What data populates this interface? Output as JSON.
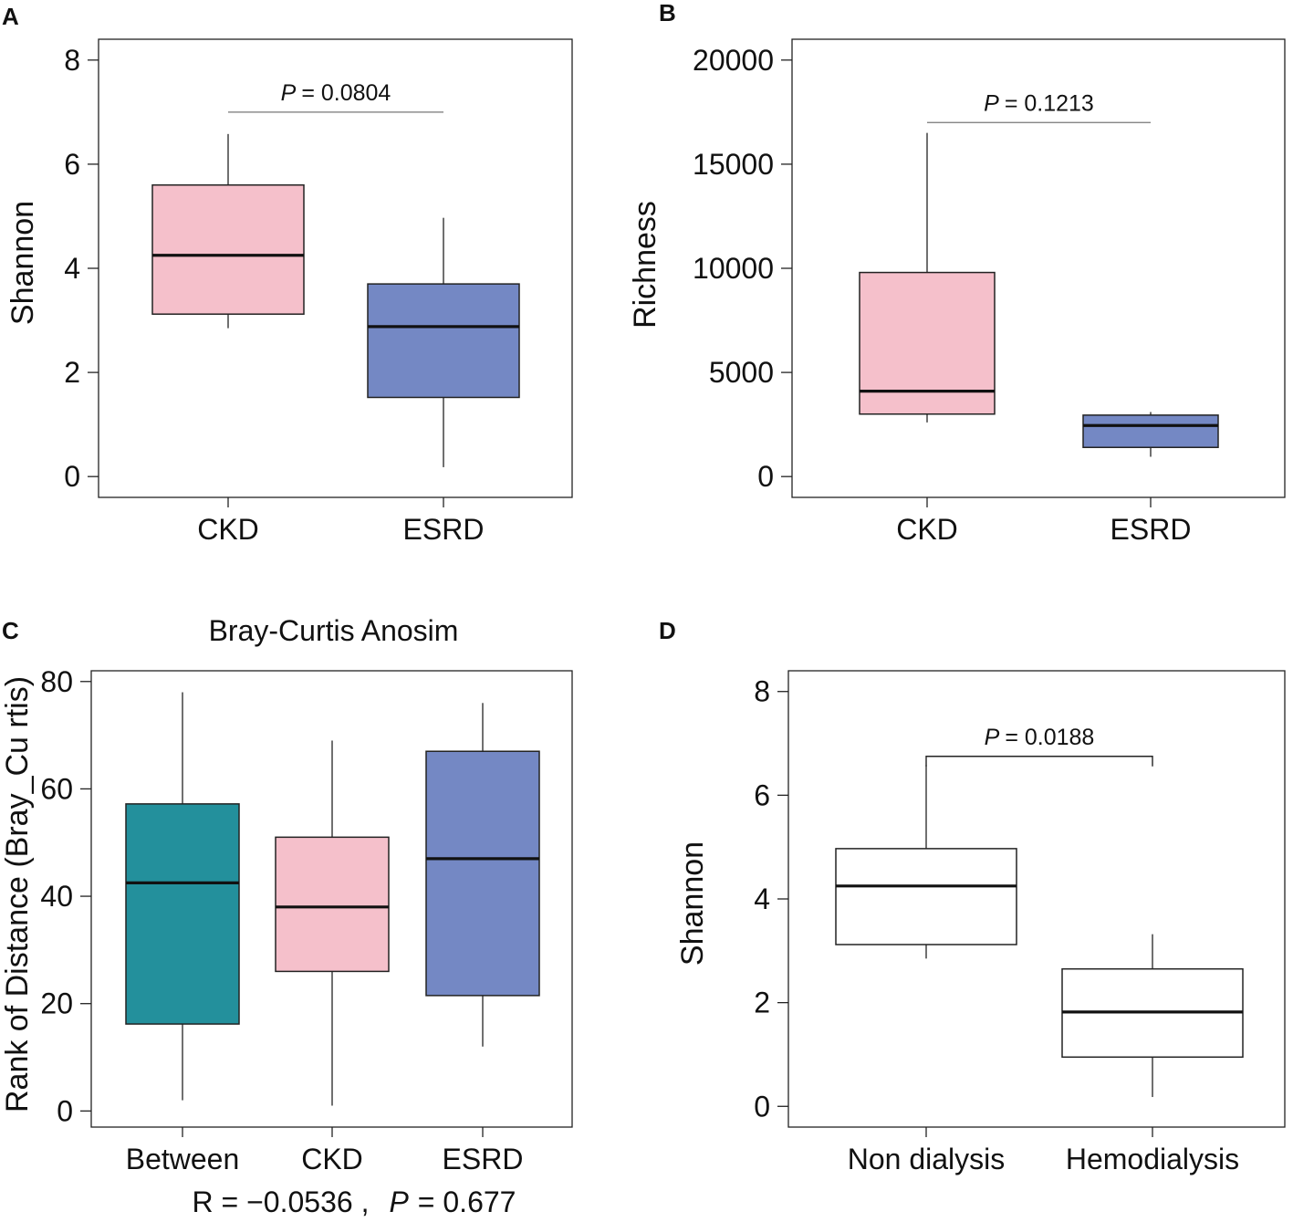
{
  "chart_data": [
    {
      "type": "box",
      "panel": "A",
      "xlabel": "",
      "ylabel": "Shannon",
      "ylim": [
        -0.4,
        8.4
      ],
      "yticks": [
        0,
        2,
        4,
        6,
        8
      ],
      "categories": [
        "CKD",
        "ESRD"
      ],
      "boxes": [
        {
          "name": "CKD",
          "min": 2.85,
          "q1": 3.12,
          "median": 4.25,
          "q3": 5.6,
          "max": 6.58,
          "color": "#f5c0cb"
        },
        {
          "name": "ESRD",
          "min": 0.18,
          "q1": 1.52,
          "median": 2.88,
          "q3": 3.7,
          "max": 4.97,
          "color": "#7488c4"
        }
      ],
      "annotation": {
        "p_label": "P",
        "p_value": "= 0.0804",
        "y": 7.0,
        "style": "line"
      }
    },
    {
      "type": "box",
      "panel": "B",
      "xlabel": "",
      "ylabel": "Richness",
      "ylim": [
        -1000,
        21000
      ],
      "yticks": [
        0,
        5000,
        10000,
        15000,
        20000
      ],
      "categories": [
        "CKD",
        "ESRD"
      ],
      "boxes": [
        {
          "name": "CKD",
          "min": 2600,
          "q1": 3000,
          "median": 4100,
          "q3": 9800,
          "max": 16500,
          "color": "#f5c0cb"
        },
        {
          "name": "ESRD",
          "min": 950,
          "q1": 1400,
          "median": 2450,
          "q3": 2950,
          "max": 3100,
          "color": "#7488c4"
        }
      ],
      "annotation": {
        "p_label": "P",
        "p_value": "= 0.1213",
        "y": 17000,
        "style": "line"
      }
    },
    {
      "type": "box",
      "panel": "C",
      "title": "Bray-Curtis Anosim",
      "xlabel": "",
      "ylabel": "Rank of Distance (Bray_Cu rtis)",
      "ylim": [
        -3,
        82
      ],
      "yticks": [
        0,
        20,
        40,
        60,
        80
      ],
      "categories": [
        "Between",
        "CKD",
        "ESRD"
      ],
      "boxes": [
        {
          "name": "Between",
          "min": 2,
          "q1": 16.2,
          "median": 42.5,
          "q3": 57.2,
          "max": 78,
          "color": "#23909c"
        },
        {
          "name": "CKD",
          "min": 1,
          "q1": 26,
          "median": 38,
          "q3": 51,
          "max": 69,
          "color": "#f5c0cb"
        },
        {
          "name": "ESRD",
          "min": 12,
          "q1": 21.5,
          "median": 47,
          "q3": 67,
          "max": 76,
          "color": "#7488c4"
        }
      ],
      "stat_text": {
        "r_text": "R = −0.0536 ,",
        "p_label": "P",
        "p_value": "= 0.677"
      }
    },
    {
      "type": "box",
      "panel": "D",
      "xlabel": "",
      "ylabel": "Shannon",
      "ylim": [
        -0.4,
        8.4
      ],
      "yticks": [
        0,
        2,
        4,
        6,
        8
      ],
      "categories": [
        "Non dialysis",
        "Hemodialysis"
      ],
      "boxes": [
        {
          "name": "Non dialysis",
          "min": 2.85,
          "q1": 3.12,
          "median": 4.25,
          "q3": 4.97,
          "max": 6.58,
          "color": "#ffffff"
        },
        {
          "name": "Hemodialysis",
          "min": 0.18,
          "q1": 0.95,
          "median": 1.82,
          "q3": 2.65,
          "max": 3.32,
          "color": "#ffffff"
        }
      ],
      "annotation": {
        "p_label": "P",
        "p_value": "= 0.0188",
        "y": 6.75,
        "style": "bracket"
      }
    }
  ]
}
